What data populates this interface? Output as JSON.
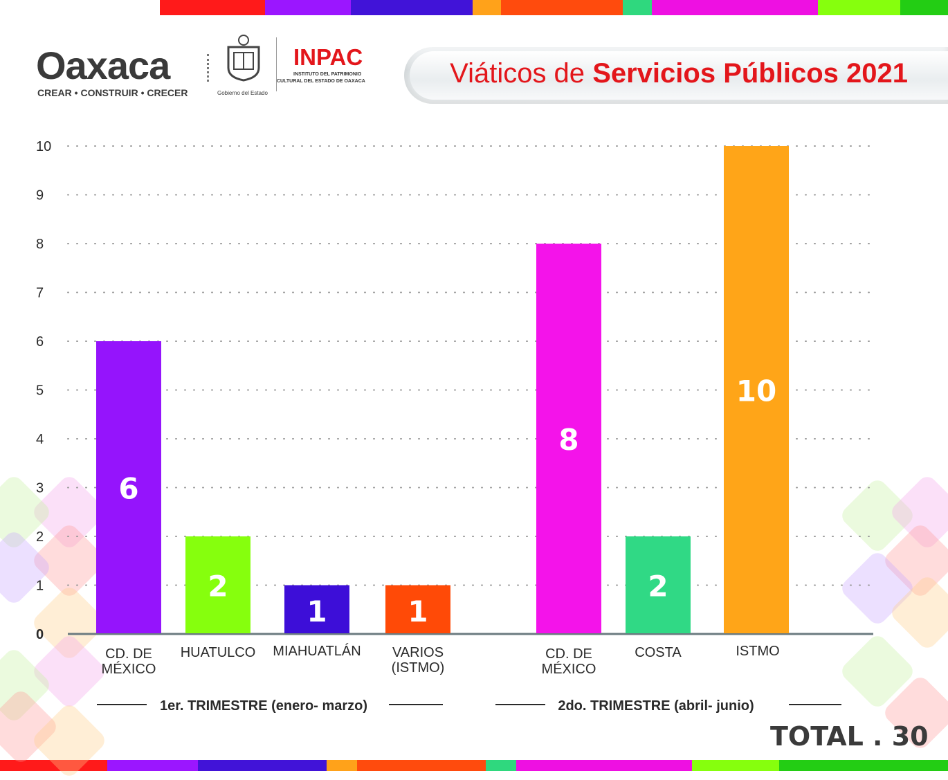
{
  "header": {
    "brand": "Oaxaca",
    "tagline": "CREAR • CONSTRUIR • CRECER",
    "gov_label": "Gobierno del Estado",
    "inpac_title": "INPAC",
    "inpac_sub1": "INSTITUTO DEL PATRIMONIO",
    "inpac_sub2": "CULTURAL DEL ESTADO DE OAXACA",
    "title_prefix": "Viáticos de",
    "title_bold": "Servicios Públicos 2021"
  },
  "stripe_colors": [
    "#ff1a1a",
    "#9b16ff",
    "#4113d8",
    "#ffa21a",
    "#ff4b0d",
    "#2fd87e",
    "#ee10e2",
    "#86ff0d",
    "#23cd14"
  ],
  "chart_data": {
    "type": "bar",
    "categories": [
      "CD. DE MÉXICO",
      "HUATULCO",
      "MIAHUATLÁN",
      "VARIOS (ISTMO)",
      "CD. DE MÉXICO",
      "COSTA",
      "ISTMO"
    ],
    "values": [
      6,
      2,
      1,
      1,
      8,
      2,
      10
    ],
    "colors": [
      "#9514fc",
      "#86ff0d",
      "#3d0ed8",
      "#ff4a07",
      "#f413ea",
      "#30d985",
      "#ffa518"
    ],
    "groups": [
      {
        "label": "1er. TRIMESTRE (enero- marzo)",
        "categories": [
          0,
          1,
          2,
          3
        ]
      },
      {
        "label": "2do. TRIMESTRE (abril- junio)",
        "categories": [
          4,
          5,
          6
        ]
      }
    ],
    "y_ticks": [
      "0",
      "1",
      "2",
      "3",
      "4",
      "5",
      "6",
      "7",
      "8",
      "9",
      "10"
    ],
    "ylim": [
      0,
      10
    ],
    "grid": true,
    "total_label": "TOTAL . 30"
  }
}
